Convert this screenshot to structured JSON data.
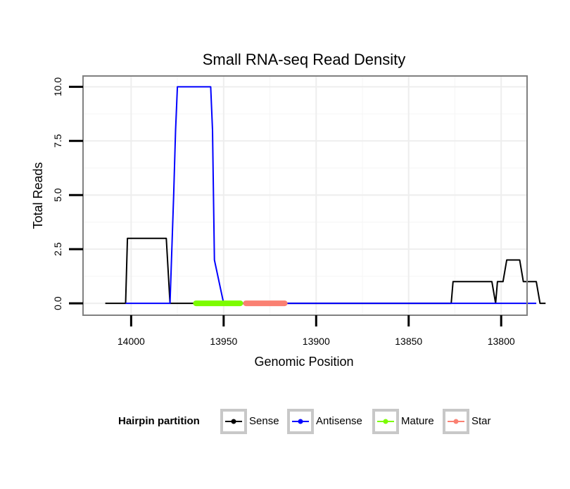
{
  "chart_data": {
    "type": "line",
    "title": "Small RNA-seq Read Density",
    "xlabel": "Genomic Position",
    "ylabel": "Total Reads",
    "x_reversed": true,
    "xlim": [
      14026,
      13786
    ],
    "ylim": [
      0,
      10.5
    ],
    "x_ticks": [
      14000,
      13950,
      13900,
      13850,
      13800
    ],
    "y_ticks": [
      0.0,
      2.5,
      5.0,
      7.5,
      10.0
    ],
    "x_tick_labels": [
      "14000",
      "13950",
      "13900",
      "13850",
      "13800"
    ],
    "y_tick_labels": [
      "0.0",
      "2.5",
      "5.0",
      "7.5",
      "10.0"
    ],
    "grid": true,
    "legend_title": "Hairpin partition",
    "legend_position": "bottom",
    "series": [
      {
        "name": "Sense",
        "color": "#000000",
        "x": [
          14014,
          14003,
          14002,
          13981,
          13979,
          13966,
          13937,
          13936,
          13910,
          13890,
          13870,
          13850,
          13827,
          13826,
          13805,
          13803,
          13802,
          13799,
          13797,
          13790,
          13788,
          13781,
          13779,
          13776
        ],
        "y": [
          0,
          0,
          3,
          3,
          0,
          0,
          0,
          0,
          0,
          0,
          0,
          0,
          0,
          1,
          1,
          0,
          1,
          1,
          2,
          2,
          1,
          1,
          0,
          0
        ]
      },
      {
        "name": "Antisense",
        "color": "#0000ff",
        "x": [
          14003,
          13979,
          13977,
          13976,
          13975,
          13957,
          13956,
          13955,
          13950,
          13827,
          13805,
          13803,
          13781
        ],
        "y": [
          0,
          0,
          5,
          8,
          10,
          10,
          8,
          2,
          0,
          0,
          0,
          0,
          0
        ]
      },
      {
        "name": "Mature",
        "color": "#7cfc00",
        "x": [
          13965,
          13941
        ],
        "y": [
          0,
          0
        ]
      },
      {
        "name": "Star",
        "color": "#fa8072",
        "x": [
          13938,
          13917
        ],
        "y": [
          0,
          0
        ]
      }
    ]
  }
}
